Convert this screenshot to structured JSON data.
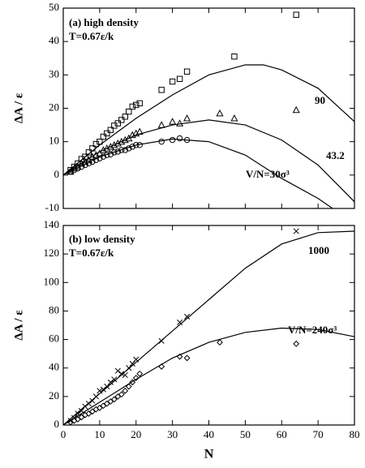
{
  "chart_data": [
    {
      "type": "scatter",
      "ylabel": "ΔA / ε",
      "annotations": [
        "(a) high density",
        "T=0.67ε/k",
        "90",
        "43.2",
        "V/N=30σ³"
      ],
      "xlim": [
        0,
        80
      ],
      "xticks": [
        0,
        10,
        20,
        30,
        40,
        50,
        60,
        70,
        80
      ],
      "ylim": [
        -10,
        50
      ],
      "yticks": [
        -10,
        0,
        10,
        20,
        30,
        40,
        50
      ],
      "series": [
        {
          "marker": "square",
          "color": "#000000",
          "x": [
            2,
            3,
            4,
            5,
            6,
            7,
            8,
            9,
            10,
            11,
            12,
            13,
            14,
            15,
            16,
            17,
            18,
            19,
            20,
            21,
            27,
            30,
            32,
            34,
            47,
            64
          ],
          "values": [
            1.5,
            2.5,
            3.5,
            4.8,
            5.5,
            6.8,
            8,
            9.3,
            10,
            11.5,
            12.5,
            13.5,
            14.8,
            15.5,
            16.5,
            17.5,
            19,
            20.5,
            21,
            21.5,
            25.5,
            28,
            28.8,
            31,
            35.5,
            48
          ]
        },
        {
          "marker": "triangle",
          "color": "#000000",
          "x": [
            2,
            3,
            4,
            5,
            6,
            7,
            8,
            9,
            10,
            11,
            12,
            13,
            14,
            15,
            16,
            17,
            18,
            19,
            20,
            21,
            27,
            30,
            32,
            34,
            43,
            47,
            64
          ],
          "values": [
            1,
            2,
            2.5,
            3.5,
            4,
            4.5,
            5.5,
            6,
            6.5,
            7.5,
            8,
            8.5,
            9,
            9.5,
            10,
            10.5,
            11,
            12,
            12.5,
            13,
            15,
            16,
            15.5,
            17,
            18.5,
            17,
            19.5
          ]
        },
        {
          "marker": "circle",
          "color": "#000000",
          "x": [
            2,
            3,
            4,
            5,
            6,
            7,
            8,
            9,
            10,
            11,
            12,
            13,
            14,
            15,
            16,
            17,
            18,
            19,
            20,
            21,
            27,
            30,
            32,
            34
          ],
          "values": [
            1,
            1.5,
            2,
            2.5,
            3,
            3.5,
            4,
            4.5,
            5,
            5.5,
            6,
            6.2,
            6.8,
            7,
            7.5,
            7.5,
            8,
            8.5,
            9,
            9,
            10,
            10.5,
            11,
            10.5
          ]
        },
        {
          "marker": "line",
          "color": "#000000",
          "x": [
            0,
            10,
            20,
            30,
            40,
            50,
            55,
            60,
            70,
            80
          ],
          "values": [
            0,
            9,
            17,
            24,
            30,
            33,
            33,
            31.5,
            26,
            16
          ]
        },
        {
          "marker": "line",
          "color": "#000000",
          "x": [
            0,
            10,
            20,
            30,
            40,
            50,
            60,
            70,
            80
          ],
          "values": [
            0,
            7,
            12,
            15,
            16.5,
            15,
            10.5,
            3,
            -8
          ]
        },
        {
          "marker": "line",
          "color": "#000000",
          "x": [
            0,
            10,
            20,
            30,
            40,
            50,
            60,
            70,
            74
          ],
          "values": [
            0,
            5.5,
            9,
            10.8,
            10,
            6,
            -1,
            -7,
            -10
          ]
        }
      ]
    },
    {
      "type": "scatter",
      "ylabel": "ΔA / ε",
      "xlabel": "N",
      "annotations": [
        "(b) low density",
        "T=0.67ε/k",
        "1000",
        "V/N=240σ³"
      ],
      "xlim": [
        0,
        80
      ],
      "xticks": [
        0,
        10,
        20,
        30,
        40,
        50,
        60,
        70,
        80
      ],
      "ylim": [
        0,
        140
      ],
      "yticks": [
        0,
        20,
        40,
        60,
        80,
        100,
        120,
        140
      ],
      "series": [
        {
          "marker": "cross",
          "color": "#000000",
          "x": [
            2,
            3,
            4,
            5,
            6,
            7,
            8,
            9,
            10,
            11,
            12,
            13,
            14,
            15,
            16,
            17,
            18,
            19,
            20,
            27,
            32,
            34,
            64
          ],
          "values": [
            3,
            5,
            8,
            10,
            13,
            15,
            17,
            20,
            24,
            25,
            27,
            30,
            32,
            38,
            36,
            35,
            40,
            43,
            46,
            59,
            72,
            76,
            136
          ]
        },
        {
          "marker": "diamond",
          "color": "#000000",
          "x": [
            2,
            3,
            4,
            5,
            6,
            7,
            8,
            9,
            10,
            11,
            12,
            13,
            14,
            15,
            16,
            17,
            18,
            19,
            20,
            21,
            27,
            32,
            34,
            43,
            64
          ],
          "values": [
            2,
            3,
            4,
            5.5,
            7,
            8,
            9.5,
            11,
            12,
            13.5,
            15,
            16.5,
            18,
            20,
            21.5,
            24,
            27,
            30,
            33,
            36,
            41,
            48,
            47,
            58,
            57
          ]
        },
        {
          "marker": "line",
          "color": "#000000",
          "x": [
            0,
            10,
            20,
            30,
            40,
            50,
            60,
            70,
            80
          ],
          "values": [
            0,
            22,
            44,
            66,
            88,
            110,
            127,
            135,
            136
          ]
        },
        {
          "marker": "line",
          "color": "#000000",
          "x": [
            0,
            10,
            20,
            30,
            40,
            50,
            60,
            70,
            80
          ],
          "values": [
            0,
            16,
            32,
            47,
            58,
            65,
            68,
            67,
            62
          ]
        }
      ]
    }
  ]
}
